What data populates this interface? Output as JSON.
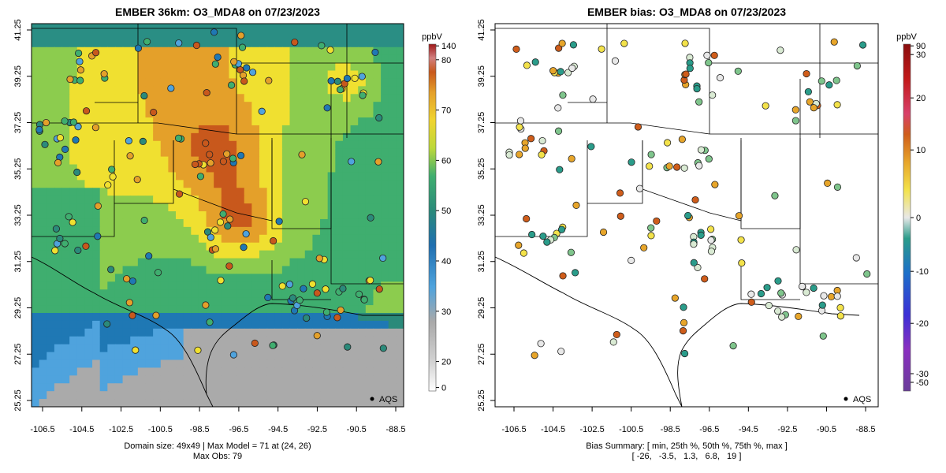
{
  "panels": [
    {
      "title": "EMBER 36km: O3_MDA8 on 07/23/2023",
      "legend_label": "AQS",
      "x_ticks": [
        "-106.5",
        "-104.5",
        "-102.5",
        "-100.5",
        "-98.5",
        "-96.5",
        "-94.5",
        "-92.5",
        "-90.5",
        "-88.5"
      ],
      "y_ticks": [
        "25.25",
        "27.25",
        "29.25",
        "31.25",
        "33.25",
        "35.25",
        "37.25",
        "39.25",
        "41.25"
      ],
      "footer_line1": "Domain size: 49x49 | Max Model = 71 at (24, 26)",
      "footer_line2": "Max Obs: 79",
      "colorbar": {
        "unit": "ppbV",
        "ticks": [
          "140",
          "80",
          "70",
          "60",
          "50",
          "40",
          "30",
          "20",
          "0"
        ]
      }
    },
    {
      "title": "EMBER bias: O3_MDA8 on 07/23/2023",
      "legend_label": "AQS",
      "x_ticks": [
        "-106.5",
        "-104.5",
        "-102.5",
        "-100.5",
        "-98.5",
        "-96.5",
        "-94.5",
        "-92.5",
        "-90.5",
        "-88.5"
      ],
      "y_ticks": [
        "25.25",
        "27.25",
        "29.25",
        "31.25",
        "33.25",
        "35.25",
        "37.25",
        "39.25",
        "41.25"
      ],
      "footer_line1": "Bias Summary: [ min, 25th %, 50th %, 75th %, max ]",
      "footer_line2": "[ -26,   -3.5,   1.3,   6.8,   19 ]",
      "colorbar": {
        "unit": "ppbV",
        "ticks": [
          "90",
          "30",
          "20",
          "10",
          "0",
          "-10",
          "-20",
          "-30",
          "-50"
        ]
      }
    }
  ],
  "colors": {
    "model_scale": [
      "#bdbdbd",
      "#b5b5b5",
      "#4fa3dd",
      "#1f78b4",
      "#2b8a7a",
      "#3fae6f",
      "#8ccc4e",
      "#f0e030",
      "#e4a02a",
      "#c8581c",
      "#a01818"
    ],
    "bias_scale": [
      "#6a3d9a",
      "#3b2fd6",
      "#1c6fc9",
      "#2a9c8a",
      "#7fc58c",
      "#e8e8e8",
      "#f3e24a",
      "#e7a52a",
      "#cf5d1b",
      "#c21919",
      "#8a0e0e"
    ],
    "state_lines": "#000000"
  }
}
